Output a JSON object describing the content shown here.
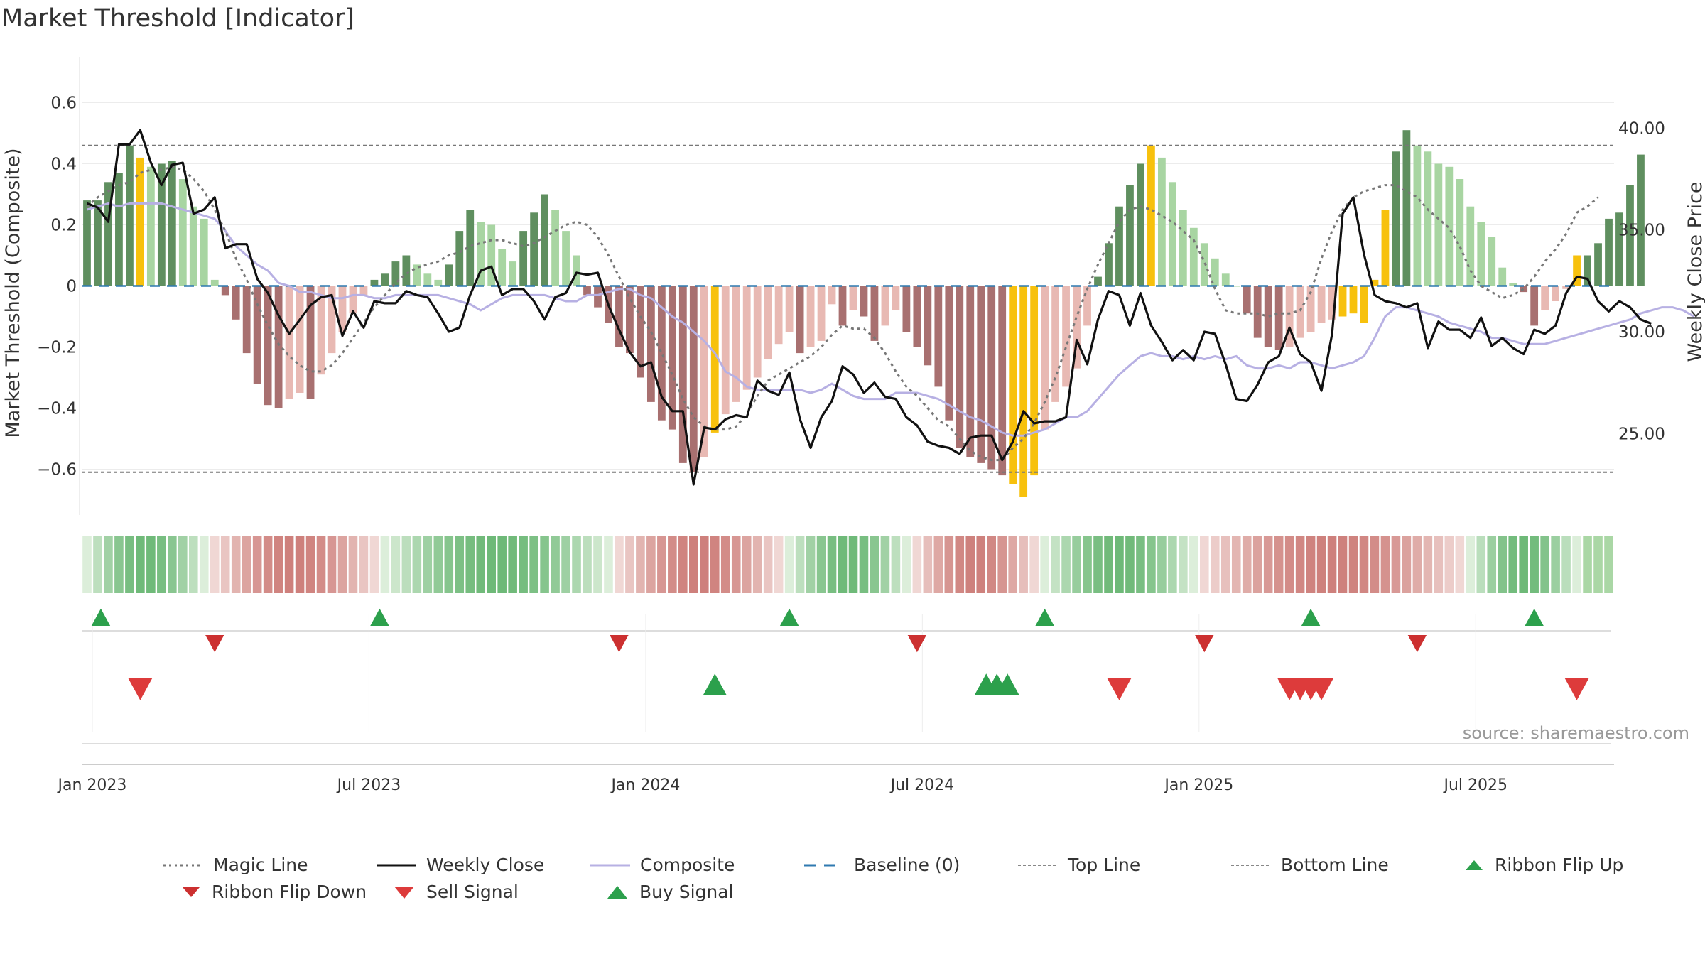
{
  "title": "Market Threshold [Indicator]",
  "source": "source: sharemaestro.com",
  "colors": {
    "strong_pos": "#5f8f5f",
    "weak_pos": "#a8d5a2",
    "strong_neg": "#a87070",
    "weak_neg": "#e8b9b3",
    "extreme": "#f7c10d",
    "close": "#111111",
    "composite": "#b7b0e3",
    "magic": "#777777",
    "baseline": "#2f7ab0",
    "buy": "#2ca04c",
    "sell": "#dd3b3b",
    "flip_down": "#cc3030"
  },
  "chart_data": {
    "type": "bar",
    "title": "Market Threshold [Indicator]",
    "ylabel": "Market Threshold (Composite)",
    "y2label": "Weekly Close Price",
    "ylim": [
      -0.75,
      0.75
    ],
    "y2lim": [
      21.0,
      43.5
    ],
    "yticks": [
      0.6,
      0.4,
      0.2,
      0,
      -0.2,
      -0.4,
      -0.6
    ],
    "ytick_labels": [
      "0.6",
      "0.4",
      "0.2",
      "0",
      "−0.2",
      "−0.4",
      "−0.6"
    ],
    "y2ticks": [
      40,
      35,
      30,
      25
    ],
    "y2tick_labels": [
      "40.00",
      "35.00",
      "30.00",
      "25.00"
    ],
    "top_line": 0.46,
    "bottom_line": -0.61,
    "x_start": "2022-12-26",
    "x_end": "2025-10-13",
    "xticks": [
      {
        "label": "Jan 2023",
        "week": 1
      },
      {
        "label": "Jul 2023",
        "week": 27
      },
      {
        "label": "Jan 2024",
        "week": 53
      },
      {
        "label": "Jul 2024",
        "week": 79
      },
      {
        "label": "Jan 2025",
        "week": 105
      },
      {
        "label": "Jul 2025",
        "week": 131
      }
    ],
    "week_count": 144,
    "histogram": [
      0.28,
      0.28,
      0.34,
      0.37,
      0.46,
      0.42,
      0.39,
      0.4,
      0.41,
      0.35,
      0.26,
      0.22,
      0.02,
      -0.03,
      -0.11,
      -0.22,
      -0.32,
      -0.39,
      -0.4,
      -0.37,
      -0.35,
      -0.37,
      -0.29,
      -0.22,
      -0.15,
      -0.09,
      -0.03,
      0.02,
      0.04,
      0.08,
      0.1,
      0.07,
      0.04,
      0.02,
      0.07,
      0.18,
      0.25,
      0.21,
      0.2,
      0.12,
      0.08,
      0.18,
      0.24,
      0.3,
      0.25,
      0.18,
      0.1,
      -0.03,
      -0.07,
      -0.12,
      -0.2,
      -0.22,
      -0.3,
      -0.38,
      -0.44,
      -0.47,
      -0.58,
      -0.61,
      -0.56,
      -0.48,
      -0.42,
      -0.38,
      -0.34,
      -0.3,
      -0.24,
      -0.19,
      -0.15,
      -0.22,
      -0.2,
      -0.18,
      -0.06,
      -0.13,
      -0.08,
      -0.1,
      -0.18,
      -0.13,
      -0.08,
      -0.15,
      -0.2,
      -0.26,
      -0.33,
      -0.44,
      -0.53,
      -0.56,
      -0.58,
      -0.6,
      -0.62,
      -0.65,
      -0.69,
      -0.62,
      -0.47,
      -0.38,
      -0.33,
      -0.27,
      -0.13,
      0.03,
      0.14,
      0.26,
      0.33,
      0.4,
      0.46,
      0.42,
      0.34,
      0.25,
      0.19,
      0.14,
      0.09,
      0.04,
      0.0,
      -0.09,
      -0.17,
      -0.2,
      -0.21,
      -0.2,
      -0.17,
      -0.15,
      -0.12,
      -0.11,
      -0.1,
      -0.09,
      -0.12,
      0.02,
      0.25,
      0.44,
      0.51,
      0.46,
      0.44,
      0.4,
      0.39,
      0.35,
      0.26,
      0.21,
      0.16,
      0.06,
      0.01,
      -0.02,
      -0.13,
      -0.08,
      -0.05,
      -0.01,
      0.1,
      0.1,
      0.14,
      0.22,
      0.24,
      0.33,
      0.43
    ],
    "histogram_extreme_weeks": [
      5,
      59,
      87,
      88,
      89,
      100,
      118,
      119,
      120,
      121,
      122,
      140
    ],
    "close": [
      36.3,
      36.1,
      35.4,
      39.2,
      39.2,
      39.9,
      38.3,
      37.2,
      38.2,
      38.3,
      35.8,
      36.0,
      36.6,
      34.1,
      34.3,
      34.3,
      32.6,
      31.9,
      30.8,
      29.9,
      30.6,
      31.3,
      31.7,
      31.8,
      29.8,
      31.0,
      30.2,
      31.5,
      31.4,
      31.4,
      32.0,
      31.8,
      31.7,
      30.9,
      30.0,
      30.2,
      31.8,
      33.0,
      33.2,
      31.8,
      32.1,
      32.1,
      31.5,
      30.6,
      31.7,
      31.9,
      32.9,
      32.8,
      32.9,
      31.3,
      30.1,
      29.0,
      28.3,
      28.5,
      26.8,
      26.1,
      26.1,
      22.5,
      25.3,
      25.2,
      25.7,
      25.9,
      25.8,
      27.6,
      27.1,
      26.9,
      28.0,
      25.7,
      24.3,
      25.8,
      26.6,
      28.3,
      27.9,
      27.0,
      27.5,
      26.8,
      26.7,
      25.8,
      25.4,
      24.6,
      24.4,
      24.3,
      24.0,
      24.8,
      24.9,
      24.9,
      23.7,
      24.6,
      26.1,
      25.5,
      25.6,
      25.6,
      25.8,
      29.6,
      28.4,
      30.6,
      32.0,
      31.8,
      30.3,
      31.9,
      30.3,
      29.5,
      28.6,
      29.1,
      28.6,
      30.0,
      29.9,
      28.4,
      26.7,
      26.6,
      27.4,
      28.5,
      28.8,
      30.2,
      28.9,
      28.5,
      27.1,
      29.9,
      35.8,
      36.6,
      33.8,
      31.8,
      31.5,
      31.4,
      31.2,
      31.4,
      29.2,
      30.5,
      30.1,
      30.1,
      29.7,
      30.7,
      29.3,
      29.7,
      29.2,
      28.9,
      30.1,
      29.9,
      30.3,
      31.9,
      32.7,
      32.6,
      31.5,
      31.0,
      31.5,
      31.2,
      30.6,
      30.4
    ],
    "composite": [
      0.25,
      0.26,
      0.27,
      0.26,
      0.27,
      0.27,
      0.27,
      0.27,
      0.26,
      0.25,
      0.24,
      0.23,
      0.22,
      0.18,
      0.13,
      0.1,
      0.07,
      0.05,
      0.01,
      0.0,
      -0.02,
      -0.02,
      -0.03,
      -0.04,
      -0.04,
      -0.03,
      -0.03,
      -0.04,
      -0.04,
      -0.03,
      -0.03,
      -0.03,
      -0.03,
      -0.03,
      -0.04,
      -0.05,
      -0.06,
      -0.08,
      -0.06,
      -0.04,
      -0.03,
      -0.03,
      -0.03,
      -0.03,
      -0.04,
      -0.05,
      -0.05,
      -0.03,
      -0.03,
      -0.02,
      -0.01,
      -0.01,
      -0.03,
      -0.04,
      -0.07,
      -0.1,
      -0.12,
      -0.15,
      -0.18,
      -0.22,
      -0.28,
      -0.3,
      -0.33,
      -0.34,
      -0.34,
      -0.34,
      -0.34,
      -0.34,
      -0.35,
      -0.34,
      -0.32,
      -0.34,
      -0.36,
      -0.37,
      -0.37,
      -0.37,
      -0.35,
      -0.35,
      -0.35,
      -0.36,
      -0.37,
      -0.39,
      -0.41,
      -0.43,
      -0.44,
      -0.46,
      -0.48,
      -0.49,
      -0.49,
      -0.48,
      -0.47,
      -0.45,
      -0.43,
      -0.43,
      -0.41,
      -0.37,
      -0.33,
      -0.29,
      -0.26,
      -0.23,
      -0.22,
      -0.23,
      -0.23,
      -0.24,
      -0.23,
      -0.24,
      -0.23,
      -0.24,
      -0.23,
      -0.26,
      -0.27,
      -0.27,
      -0.26,
      -0.27,
      -0.25,
      -0.25,
      -0.26,
      -0.27,
      -0.26,
      -0.25,
      -0.23,
      -0.17,
      -0.1,
      -0.07,
      -0.07,
      -0.08,
      -0.09,
      -0.1,
      -0.12,
      -0.13,
      -0.14,
      -0.15,
      -0.17,
      -0.17,
      -0.18,
      -0.19,
      -0.19,
      -0.19,
      -0.18,
      -0.17,
      -0.16,
      -0.15,
      -0.14,
      -0.13,
      -0.12,
      -0.11,
      -0.09,
      -0.08,
      -0.07,
      -0.07,
      -0.08,
      -0.1
    ],
    "magic_line": [
      0.26,
      0.29,
      0.31,
      0.33,
      0.34,
      0.37,
      0.38,
      0.38,
      0.39,
      0.38,
      0.35,
      0.31,
      0.25,
      0.18,
      0.09,
      0.02,
      -0.06,
      -0.13,
      -0.19,
      -0.23,
      -0.26,
      -0.28,
      -0.28,
      -0.26,
      -0.22,
      -0.17,
      -0.12,
      -0.07,
      -0.03,
      0.01,
      0.04,
      0.06,
      0.07,
      0.08,
      0.1,
      0.11,
      0.13,
      0.14,
      0.15,
      0.15,
      0.14,
      0.13,
      0.14,
      0.16,
      0.18,
      0.2,
      0.21,
      0.2,
      0.16,
      0.1,
      0.03,
      -0.04,
      -0.1,
      -0.15,
      -0.22,
      -0.29,
      -0.37,
      -0.43,
      -0.46,
      -0.47,
      -0.47,
      -0.46,
      -0.42,
      -0.36,
      -0.31,
      -0.29,
      -0.27,
      -0.25,
      -0.23,
      -0.2,
      -0.16,
      -0.13,
      -0.14,
      -0.14,
      -0.17,
      -0.22,
      -0.28,
      -0.33,
      -0.36,
      -0.4,
      -0.44,
      -0.46,
      -0.5,
      -0.54,
      -0.56,
      -0.57,
      -0.57,
      -0.53,
      -0.5,
      -0.45,
      -0.38,
      -0.3,
      -0.2,
      -0.1,
      -0.01,
      0.07,
      0.14,
      0.21,
      0.25,
      0.26,
      0.25,
      0.23,
      0.21,
      0.18,
      0.15,
      0.08,
      -0.01,
      -0.08,
      -0.09,
      -0.09,
      -0.09,
      -0.1,
      -0.09,
      -0.09,
      -0.08,
      -0.02,
      0.09,
      0.18,
      0.25,
      0.29,
      0.31,
      0.32,
      0.33,
      0.33,
      0.31,
      0.29,
      0.25,
      0.22,
      0.19,
      0.13,
      0.05,
      0.0,
      -0.02,
      -0.04,
      -0.03,
      -0.01,
      0.03,
      0.08,
      0.12,
      0.17,
      0.24,
      0.26,
      0.29
    ],
    "ribbon": [
      {
        "start": 0,
        "end": 11,
        "state": "positive"
      },
      {
        "start": 12,
        "end": 27,
        "state": "negative"
      },
      {
        "start": 28,
        "end": 49,
        "state": "positive"
      },
      {
        "start": 50,
        "end": 65,
        "state": "negative"
      },
      {
        "start": 66,
        "end": 77,
        "state": "positive"
      },
      {
        "start": 78,
        "end": 89,
        "state": "negative"
      },
      {
        "start": 90,
        "end": 104,
        "state": "positive"
      },
      {
        "start": 105,
        "end": 129,
        "state": "negative"
      },
      {
        "start": 130,
        "end": 140,
        "state": "positive"
      }
    ],
    "ribbon_flip_up_weeks": [
      1.3,
      27.5,
      66.0,
      90.0,
      115.0,
      136.0
    ],
    "ribbon_flip_down_weeks": [
      12.0,
      50.0,
      78.0,
      105.0,
      125.0
    ],
    "buy_signal_weeks": [
      59.0,
      84.5,
      85.5,
      86.5
    ],
    "sell_signal_weeks": [
      5.0,
      97.0,
      113.0,
      114.0,
      115.0,
      116.0,
      140.0
    ],
    "legend": [
      {
        "label": "Magic Line",
        "kind": "dotted-line"
      },
      {
        "label": "Weekly Close",
        "kind": "solid-black"
      },
      {
        "label": "Composite",
        "kind": "solid-lavender"
      },
      {
        "label": "Baseline (0)",
        "kind": "dashed-blue"
      },
      {
        "label": "Top Line",
        "kind": "dotted-thin"
      },
      {
        "label": "Bottom Line",
        "kind": "dotted-thin"
      },
      {
        "label": "Ribbon Flip Up",
        "kind": "triangle-up-green"
      },
      {
        "label": "Ribbon Flip Down",
        "kind": "triangle-down-red"
      },
      {
        "label": "Sell Signal",
        "kind": "triangle-down-sell"
      },
      {
        "label": "Buy Signal",
        "kind": "triangle-up-buy"
      }
    ]
  }
}
